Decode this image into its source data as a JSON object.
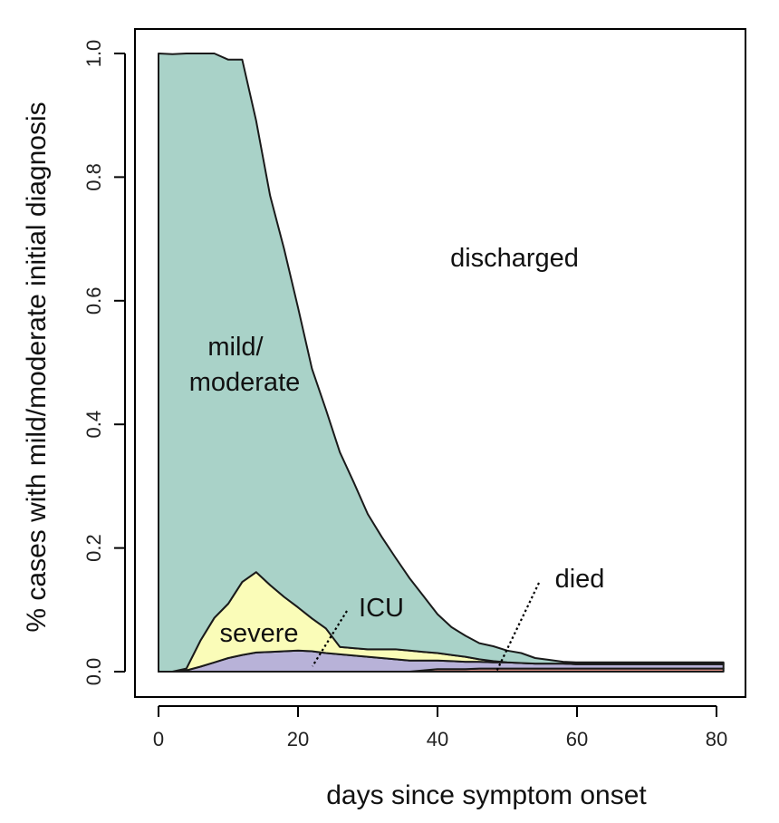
{
  "chart_data": {
    "type": "area",
    "xlabel": "days since symptom onset",
    "ylabel": "% cases with mild/moderate initial diagnosis",
    "xlim": [
      0,
      81
    ],
    "ylim": [
      0,
      1
    ],
    "xticks": [
      "0",
      "20",
      "40",
      "60",
      "80"
    ],
    "yticks": [
      "0.0",
      "0.2",
      "0.4",
      "0.6",
      "0.8",
      "1.0"
    ],
    "x": [
      0,
      2,
      4,
      6,
      8,
      10,
      12,
      14,
      16,
      18,
      20,
      22,
      24,
      26,
      28,
      30,
      32,
      34,
      36,
      38,
      40,
      42,
      44,
      46,
      48,
      50,
      52,
      54,
      56,
      58,
      60,
      62,
      64,
      66,
      68,
      70,
      72,
      74,
      76,
      78,
      81
    ],
    "series": [
      {
        "name": "died",
        "values": [
          0,
          0,
          0,
          0,
          0,
          0,
          0,
          0,
          0,
          0,
          0,
          0,
          0,
          0,
          0,
          0,
          0,
          0,
          0,
          0.002,
          0.004,
          0.004,
          0.004,
          0.005,
          0.005,
          0.005,
          0.005,
          0.005,
          0.005,
          0.005,
          0.005,
          0.005,
          0.005,
          0.005,
          0.005,
          0.005,
          0.005,
          0.005,
          0.005,
          0.005,
          0.005
        ],
        "color": "#de8f83"
      },
      {
        "name": "ICU",
        "values": [
          0,
          0,
          0.002,
          0.008,
          0.015,
          0.022,
          0.027,
          0.031,
          0.032,
          0.033,
          0.034,
          0.033,
          0.03,
          0.028,
          0.026,
          0.024,
          0.022,
          0.02,
          0.018,
          0.016,
          0.014,
          0.013,
          0.012,
          0.011,
          0.01,
          0.01,
          0.009,
          0.008,
          0.008,
          0.008,
          0.007,
          0.007,
          0.007,
          0.007,
          0.007,
          0.007,
          0.007,
          0.007,
          0.007,
          0.007,
          0.007
        ],
        "color": "#b8b2d8"
      },
      {
        "name": "severe",
        "values": [
          0,
          0,
          0.003,
          0.042,
          0.072,
          0.088,
          0.118,
          0.13,
          0.108,
          0.088,
          0.07,
          0.053,
          0.04,
          0.012,
          0.012,
          0.012,
          0.014,
          0.016,
          0.016,
          0.014,
          0.012,
          0.01,
          0.008,
          0.004,
          0.002,
          0,
          0,
          0,
          0,
          0,
          0,
          0,
          0,
          0,
          0,
          0,
          0,
          0,
          0,
          0,
          0
        ],
        "color": "#fafcb8"
      },
      {
        "name": "mild/moderate",
        "values": [
          1.0,
          0.999,
          0.995,
          0.95,
          0.913,
          0.88,
          0.845,
          0.73,
          0.63,
          0.563,
          0.485,
          0.404,
          0.354,
          0.315,
          0.268,
          0.219,
          0.182,
          0.148,
          0.117,
          0.09,
          0.063,
          0.045,
          0.034,
          0.026,
          0.024,
          0.019,
          0.016,
          0.009,
          0.006,
          0.003,
          0.003,
          0.003,
          0.003,
          0.003,
          0.003,
          0.003,
          0.003,
          0.003,
          0.003,
          0.003,
          0.003
        ],
        "color": "#a9d2c8"
      }
    ],
    "annotations": {
      "discharged": "discharged",
      "mild_moderate_line1": "mild/",
      "mild_moderate_line2": "moderate",
      "severe": "severe",
      "icu": "ICU",
      "died": "died"
    }
  }
}
